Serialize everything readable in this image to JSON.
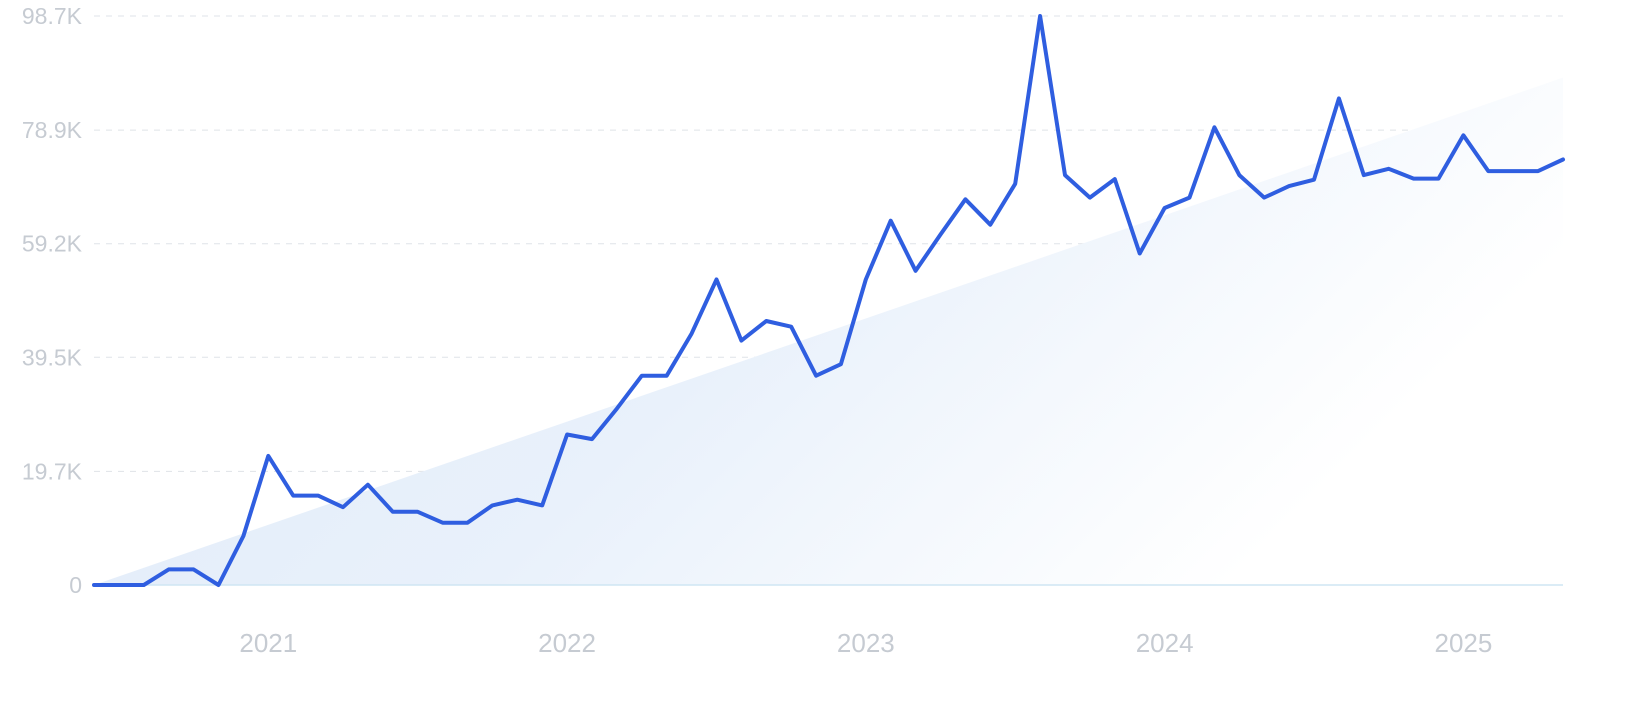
{
  "chart_data": {
    "type": "line",
    "title": "",
    "xlabel": "",
    "ylabel": "",
    "grid": true,
    "legend": "none",
    "colors": {
      "line": "#2f5ee0",
      "trend_fill_start": "#dfeaf8",
      "trend_fill_end": "#ffffff",
      "tick_label": "#c6cbd2",
      "grid": "#dfe3e8"
    },
    "y_ticks": [
      {
        "value": 0,
        "label": "0"
      },
      {
        "value": 19700,
        "label": "19.7K"
      },
      {
        "value": 39500,
        "label": "39.5K"
      },
      {
        "value": 59200,
        "label": "59.2K"
      },
      {
        "value": 78900,
        "label": "78.9K"
      },
      {
        "value": 98700,
        "label": "98.7K"
      }
    ],
    "x_ticks": [
      "2021",
      "2022",
      "2023",
      "2024",
      "2025"
    ],
    "ylim": [
      0,
      98700
    ],
    "x": [
      "2020-06",
      "2020-07",
      "2020-08",
      "2020-09",
      "2020-10",
      "2020-11",
      "2020-12",
      "2021-01",
      "2021-02",
      "2021-03",
      "2021-04",
      "2021-05",
      "2021-06",
      "2021-07",
      "2021-08",
      "2021-09",
      "2021-10",
      "2021-11",
      "2021-12",
      "2022-01",
      "2022-02",
      "2022-03",
      "2022-04",
      "2022-05",
      "2022-06",
      "2022-07",
      "2022-08",
      "2022-09",
      "2022-10",
      "2022-11",
      "2022-12",
      "2023-01",
      "2023-02",
      "2023-03",
      "2023-04",
      "2023-05",
      "2023-06",
      "2023-07",
      "2023-08",
      "2023-09",
      "2023-10",
      "2023-11",
      "2023-12",
      "2024-01",
      "2024-02",
      "2024-03",
      "2024-04",
      "2024-05",
      "2024-06",
      "2024-07",
      "2024-08",
      "2024-09",
      "2024-10",
      "2024-11",
      "2024-12",
      "2025-01",
      "2025-02",
      "2025-03",
      "2025-04",
      "2025-05"
    ],
    "series": [
      {
        "values": [
          0,
          0,
          0,
          2700,
          2700,
          0,
          8500,
          22400,
          15500,
          15500,
          13500,
          17400,
          12700,
          12700,
          10800,
          10800,
          13800,
          14800,
          13800,
          26100,
          25300,
          30600,
          36300,
          36300,
          43600,
          53000,
          42400,
          45800,
          44800,
          36300,
          38300,
          53000,
          63200,
          54500,
          60800,
          66900,
          62500,
          69600,
          98700,
          71100,
          67200,
          70400,
          57500,
          65400,
          67200,
          79400,
          71100,
          67200,
          69200,
          70300,
          84400,
          71100,
          72200,
          70500,
          70500,
          78000,
          71800,
          71800,
          71800,
          73800
        ]
      }
    ],
    "trend": {
      "start": {
        "x": "2020-06",
        "y": 0
      },
      "end": {
        "x": "2025-05",
        "y": 88000
      }
    }
  }
}
